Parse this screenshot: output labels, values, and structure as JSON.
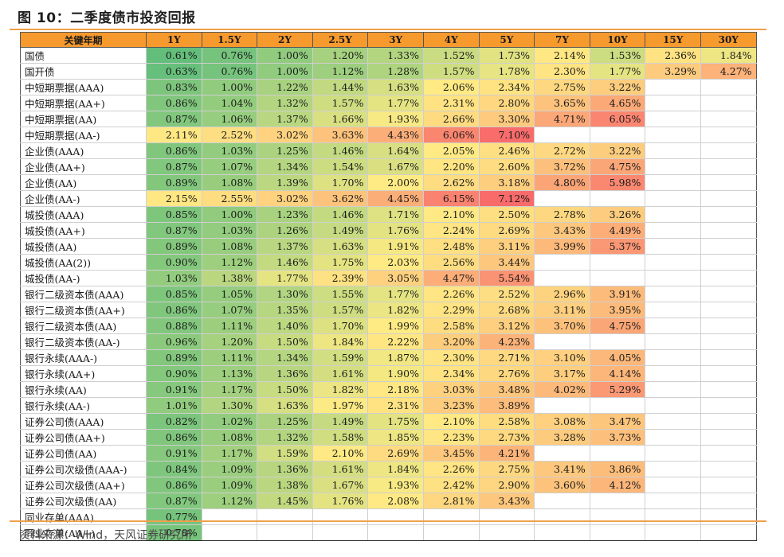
{
  "title": "图 10：二季度债市投资回报",
  "source": "资料来源：Wind，天风证券研究所",
  "chart_data": {
    "type": "table",
    "header_label": "关键年期",
    "columns": [
      "1Y",
      "1.5Y",
      "2Y",
      "2.5Y",
      "3Y",
      "4Y",
      "5Y",
      "7Y",
      "10Y",
      "15Y",
      "30Y"
    ],
    "color_scale": {
      "low": "#63be7b",
      "mid": "#ffeb84",
      "high": "#f8696b",
      "min": 0.6,
      "mid_value": 2.0,
      "max": 7.2
    },
    "groups": [
      {
        "rows": [
          {
            "label": "国债",
            "values": [
              "0.61%",
              "0.76%",
              "1.00%",
              "1.20%",
              "1.33%",
              "1.52%",
              "1.73%",
              "2.14%",
              "1.53%",
              "2.36%",
              "1.84%"
            ]
          },
          {
            "label": "国开债",
            "values": [
              "0.63%",
              "0.76%",
              "1.00%",
              "1.12%",
              "1.28%",
              "1.57%",
              "1.78%",
              "2.30%",
              "1.77%",
              "3.29%",
              "4.27%"
            ]
          }
        ]
      },
      {
        "rows": [
          {
            "label": "中短期票据(AAA)",
            "values": [
              "0.83%",
              "1.00%",
              "1.22%",
              "1.44%",
              "1.63%",
              "2.06%",
              "2.34%",
              "2.75%",
              "3.22%",
              "",
              ""
            ]
          },
          {
            "label": "中短期票据(AA+)",
            "values": [
              "0.86%",
              "1.04%",
              "1.32%",
              "1.57%",
              "1.77%",
              "2.31%",
              "2.80%",
              "3.65%",
              "4.65%",
              "",
              ""
            ]
          },
          {
            "label": "中短期票据(AA)",
            "values": [
              "0.87%",
              "1.06%",
              "1.37%",
              "1.66%",
              "1.93%",
              "2.66%",
              "3.30%",
              "4.71%",
              "6.05%",
              "",
              ""
            ]
          },
          {
            "label": "中短期票据(AA-)",
            "values": [
              "2.11%",
              "2.52%",
              "3.02%",
              "3.63%",
              "4.43%",
              "6.06%",
              "7.10%",
              "",
              "",
              "",
              ""
            ]
          }
        ]
      },
      {
        "rows": [
          {
            "label": "企业债(AAA)",
            "values": [
              "0.86%",
              "1.03%",
              "1.25%",
              "1.46%",
              "1.64%",
              "2.05%",
              "2.46%",
              "2.72%",
              "3.22%",
              "",
              ""
            ]
          },
          {
            "label": "企业债(AA+)",
            "values": [
              "0.87%",
              "1.07%",
              "1.34%",
              "1.54%",
              "1.67%",
              "2.20%",
              "2.60%",
              "3.72%",
              "4.75%",
              "",
              ""
            ]
          },
          {
            "label": "企业债(AA)",
            "values": [
              "0.89%",
              "1.08%",
              "1.39%",
              "1.70%",
              "2.00%",
              "2.62%",
              "3.18%",
              "4.80%",
              "5.98%",
              "",
              ""
            ]
          },
          {
            "label": "企业债(AA-)",
            "values": [
              "2.15%",
              "2.55%",
              "3.02%",
              "3.62%",
              "4.45%",
              "6.15%",
              "7.12%",
              "",
              "",
              "",
              ""
            ]
          }
        ]
      },
      {
        "rows": [
          {
            "label": "城投债(AAA)",
            "values": [
              "0.85%",
              "1.00%",
              "1.23%",
              "1.46%",
              "1.71%",
              "2.10%",
              "2.50%",
              "2.78%",
              "3.26%",
              "",
              ""
            ]
          },
          {
            "label": "城投债(AA+)",
            "values": [
              "0.87%",
              "1.03%",
              "1.26%",
              "1.49%",
              "1.76%",
              "2.24%",
              "2.69%",
              "3.43%",
              "4.49%",
              "",
              ""
            ]
          },
          {
            "label": "城投债(AA)",
            "values": [
              "0.89%",
              "1.08%",
              "1.37%",
              "1.63%",
              "1.91%",
              "2.48%",
              "3.11%",
              "3.99%",
              "5.37%",
              "",
              ""
            ]
          },
          {
            "label": "城投债(AA(2))",
            "values": [
              "0.90%",
              "1.12%",
              "1.46%",
              "1.75%",
              "2.03%",
              "2.56%",
              "3.44%",
              "",
              "",
              "",
              ""
            ]
          },
          {
            "label": "城投债(AA-)",
            "values": [
              "1.03%",
              "1.38%",
              "1.77%",
              "2.39%",
              "3.05%",
              "4.47%",
              "5.54%",
              "",
              "",
              "",
              ""
            ]
          }
        ]
      },
      {
        "rows": [
          {
            "label": "银行二级资本债(AAA)",
            "values": [
              "0.85%",
              "1.05%",
              "1.30%",
              "1.55%",
              "1.77%",
              "2.26%",
              "2.52%",
              "2.96%",
              "3.91%",
              "",
              ""
            ]
          },
          {
            "label": "银行二级资本债(AA+)",
            "values": [
              "0.86%",
              "1.07%",
              "1.35%",
              "1.57%",
              "1.82%",
              "2.29%",
              "2.68%",
              "3.11%",
              "3.95%",
              "",
              ""
            ]
          },
          {
            "label": "银行二级资本债(AA)",
            "values": [
              "0.88%",
              "1.11%",
              "1.40%",
              "1.70%",
              "1.99%",
              "2.58%",
              "3.12%",
              "3.70%",
              "4.75%",
              "",
              ""
            ]
          },
          {
            "label": "银行二级资本债(AA-)",
            "values": [
              "0.96%",
              "1.20%",
              "1.50%",
              "1.84%",
              "2.22%",
              "3.20%",
              "4.23%",
              "",
              "",
              "",
              ""
            ]
          }
        ]
      },
      {
        "rows": [
          {
            "label": "银行永续(AAA-)",
            "values": [
              "0.89%",
              "1.11%",
              "1.34%",
              "1.59%",
              "1.87%",
              "2.30%",
              "2.71%",
              "3.10%",
              "4.05%",
              "",
              ""
            ]
          },
          {
            "label": "银行永续(AA+)",
            "values": [
              "0.90%",
              "1.13%",
              "1.36%",
              "1.61%",
              "1.90%",
              "2.34%",
              "2.76%",
              "3.17%",
              "4.14%",
              "",
              ""
            ]
          },
          {
            "label": "银行永续(AA)",
            "values": [
              "0.91%",
              "1.17%",
              "1.50%",
              "1.82%",
              "2.18%",
              "3.03%",
              "3.48%",
              "4.02%",
              "5.29%",
              "",
              ""
            ]
          },
          {
            "label": "银行永续(AA-)",
            "values": [
              "1.01%",
              "1.30%",
              "1.63%",
              "1.97%",
              "2.31%",
              "3.23%",
              "3.89%",
              "",
              "",
              "",
              ""
            ]
          }
        ]
      },
      {
        "rows": [
          {
            "label": "证券公司债(AAA)",
            "values": [
              "0.82%",
              "1.02%",
              "1.25%",
              "1.49%",
              "1.75%",
              "2.10%",
              "2.58%",
              "3.08%",
              "3.47%",
              "",
              ""
            ]
          },
          {
            "label": "证券公司债(AA+)",
            "values": [
              "0.86%",
              "1.08%",
              "1.32%",
              "1.58%",
              "1.85%",
              "2.23%",
              "2.73%",
              "3.28%",
              "3.73%",
              "",
              ""
            ]
          },
          {
            "label": "证券公司债(AA)",
            "values": [
              "0.91%",
              "1.17%",
              "1.59%",
              "2.10%",
              "2.69%",
              "3.45%",
              "4.21%",
              "",
              "",
              "",
              ""
            ]
          }
        ]
      },
      {
        "rows": [
          {
            "label": "证券公司次级债(AAA-)",
            "values": [
              "0.84%",
              "1.09%",
              "1.36%",
              "1.61%",
              "1.84%",
              "2.26%",
              "2.75%",
              "3.41%",
              "3.86%",
              "",
              ""
            ]
          },
          {
            "label": "证券公司次级债(AA+)",
            "values": [
              "0.86%",
              "1.09%",
              "1.38%",
              "1.67%",
              "1.93%",
              "2.42%",
              "2.90%",
              "3.60%",
              "4.12%",
              "",
              ""
            ]
          },
          {
            "label": "证券公司次级债(AA)",
            "values": [
              "0.87%",
              "1.12%",
              "1.45%",
              "1.76%",
              "2.08%",
              "2.81%",
              "3.43%",
              "",
              "",
              "",
              ""
            ]
          }
        ]
      },
      {
        "rows": [
          {
            "label": "同业存单(AAA)",
            "values": [
              "0.77%",
              "",
              "",
              "",
              "",
              "",
              "",
              "",
              "",
              "",
              ""
            ]
          },
          {
            "label": "同业存单(AA+)",
            "values": [
              "0.78%",
              "",
              "",
              "",
              "",
              "",
              "",
              "",
              "",
              "",
              ""
            ]
          }
        ]
      }
    ]
  }
}
